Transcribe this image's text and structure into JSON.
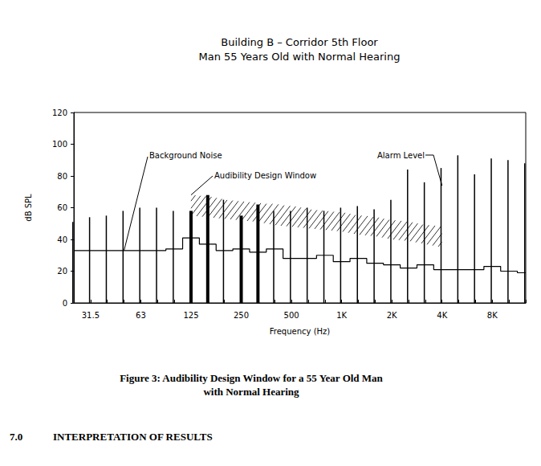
{
  "chart_data": {
    "type": "bar",
    "title": "Building B – Corridor 5th Floor",
    "subtitle": "Man 55 Years Old with Normal Hearing",
    "x_label": "Frequency (Hz)",
    "y_label": "dB SPL",
    "caption": [
      "Figure 3: Audibility Design Window for a 55 Year Old Man",
      "with Normal Hearing"
    ],
    "section_heading": {
      "number": "7.0",
      "title": "INTERPRETATION OF RESULTS"
    },
    "categories": [
      null,
      "31.5",
      null,
      null,
      "63",
      null,
      null,
      "125",
      null,
      null,
      "250",
      null,
      null,
      "500",
      null,
      null,
      "1K",
      null,
      null,
      "2K",
      null,
      null,
      "4K",
      null,
      null,
      "8K",
      null,
      null
    ],
    "ylim": [
      0,
      120
    ],
    "yticks": [
      0,
      20,
      40,
      60,
      80,
      100,
      120
    ],
    "grid": false,
    "series": [
      {
        "name": "Alarm Level",
        "type": "bar",
        "color": "#000000",
        "values": [
          51,
          54,
          55,
          58,
          60,
          60,
          58,
          null,
          null,
          65,
          null,
          null,
          58,
          58,
          60,
          58,
          60,
          61,
          59,
          65,
          84,
          76,
          85,
          93,
          81,
          91,
          90,
          88
        ]
      },
      {
        "type": "bar",
        "color": "#000000",
        "line_style": "bold",
        "values": [
          null,
          null,
          null,
          null,
          null,
          null,
          null,
          58,
          68,
          null,
          55,
          62,
          null,
          null,
          null,
          null,
          null,
          null,
          null,
          null,
          null,
          null,
          null,
          null,
          null,
          null,
          null,
          null
        ]
      },
      {
        "name": "Background Noise",
        "type": "line",
        "color": "#000000",
        "line_style": "step",
        "values": [
          33,
          33,
          33,
          33,
          33,
          33,
          34,
          41,
          37,
          33,
          34,
          32,
          34,
          28,
          28,
          30,
          26,
          28,
          25,
          24,
          22,
          24,
          21,
          21,
          21,
          23,
          20,
          19
        ]
      },
      {
        "name": "Audibility Design Window",
        "type": "band",
        "color": "#000000",
        "marker": "hatch",
        "lower": [
          null,
          null,
          null,
          null,
          null,
          null,
          null,
          55,
          54,
          53,
          52,
          51,
          49,
          48,
          47,
          46,
          45,
          43,
          42,
          40,
          39,
          37,
          35,
          null,
          null,
          null,
          null,
          null
        ],
        "upper": [
          null,
          null,
          null,
          null,
          null,
          null,
          null,
          68,
          67,
          65,
          64,
          63,
          62,
          61,
          59,
          58,
          57,
          55,
          54,
          52,
          51,
          49,
          48,
          null,
          null,
          null,
          null,
          null
        ]
      }
    ]
  }
}
